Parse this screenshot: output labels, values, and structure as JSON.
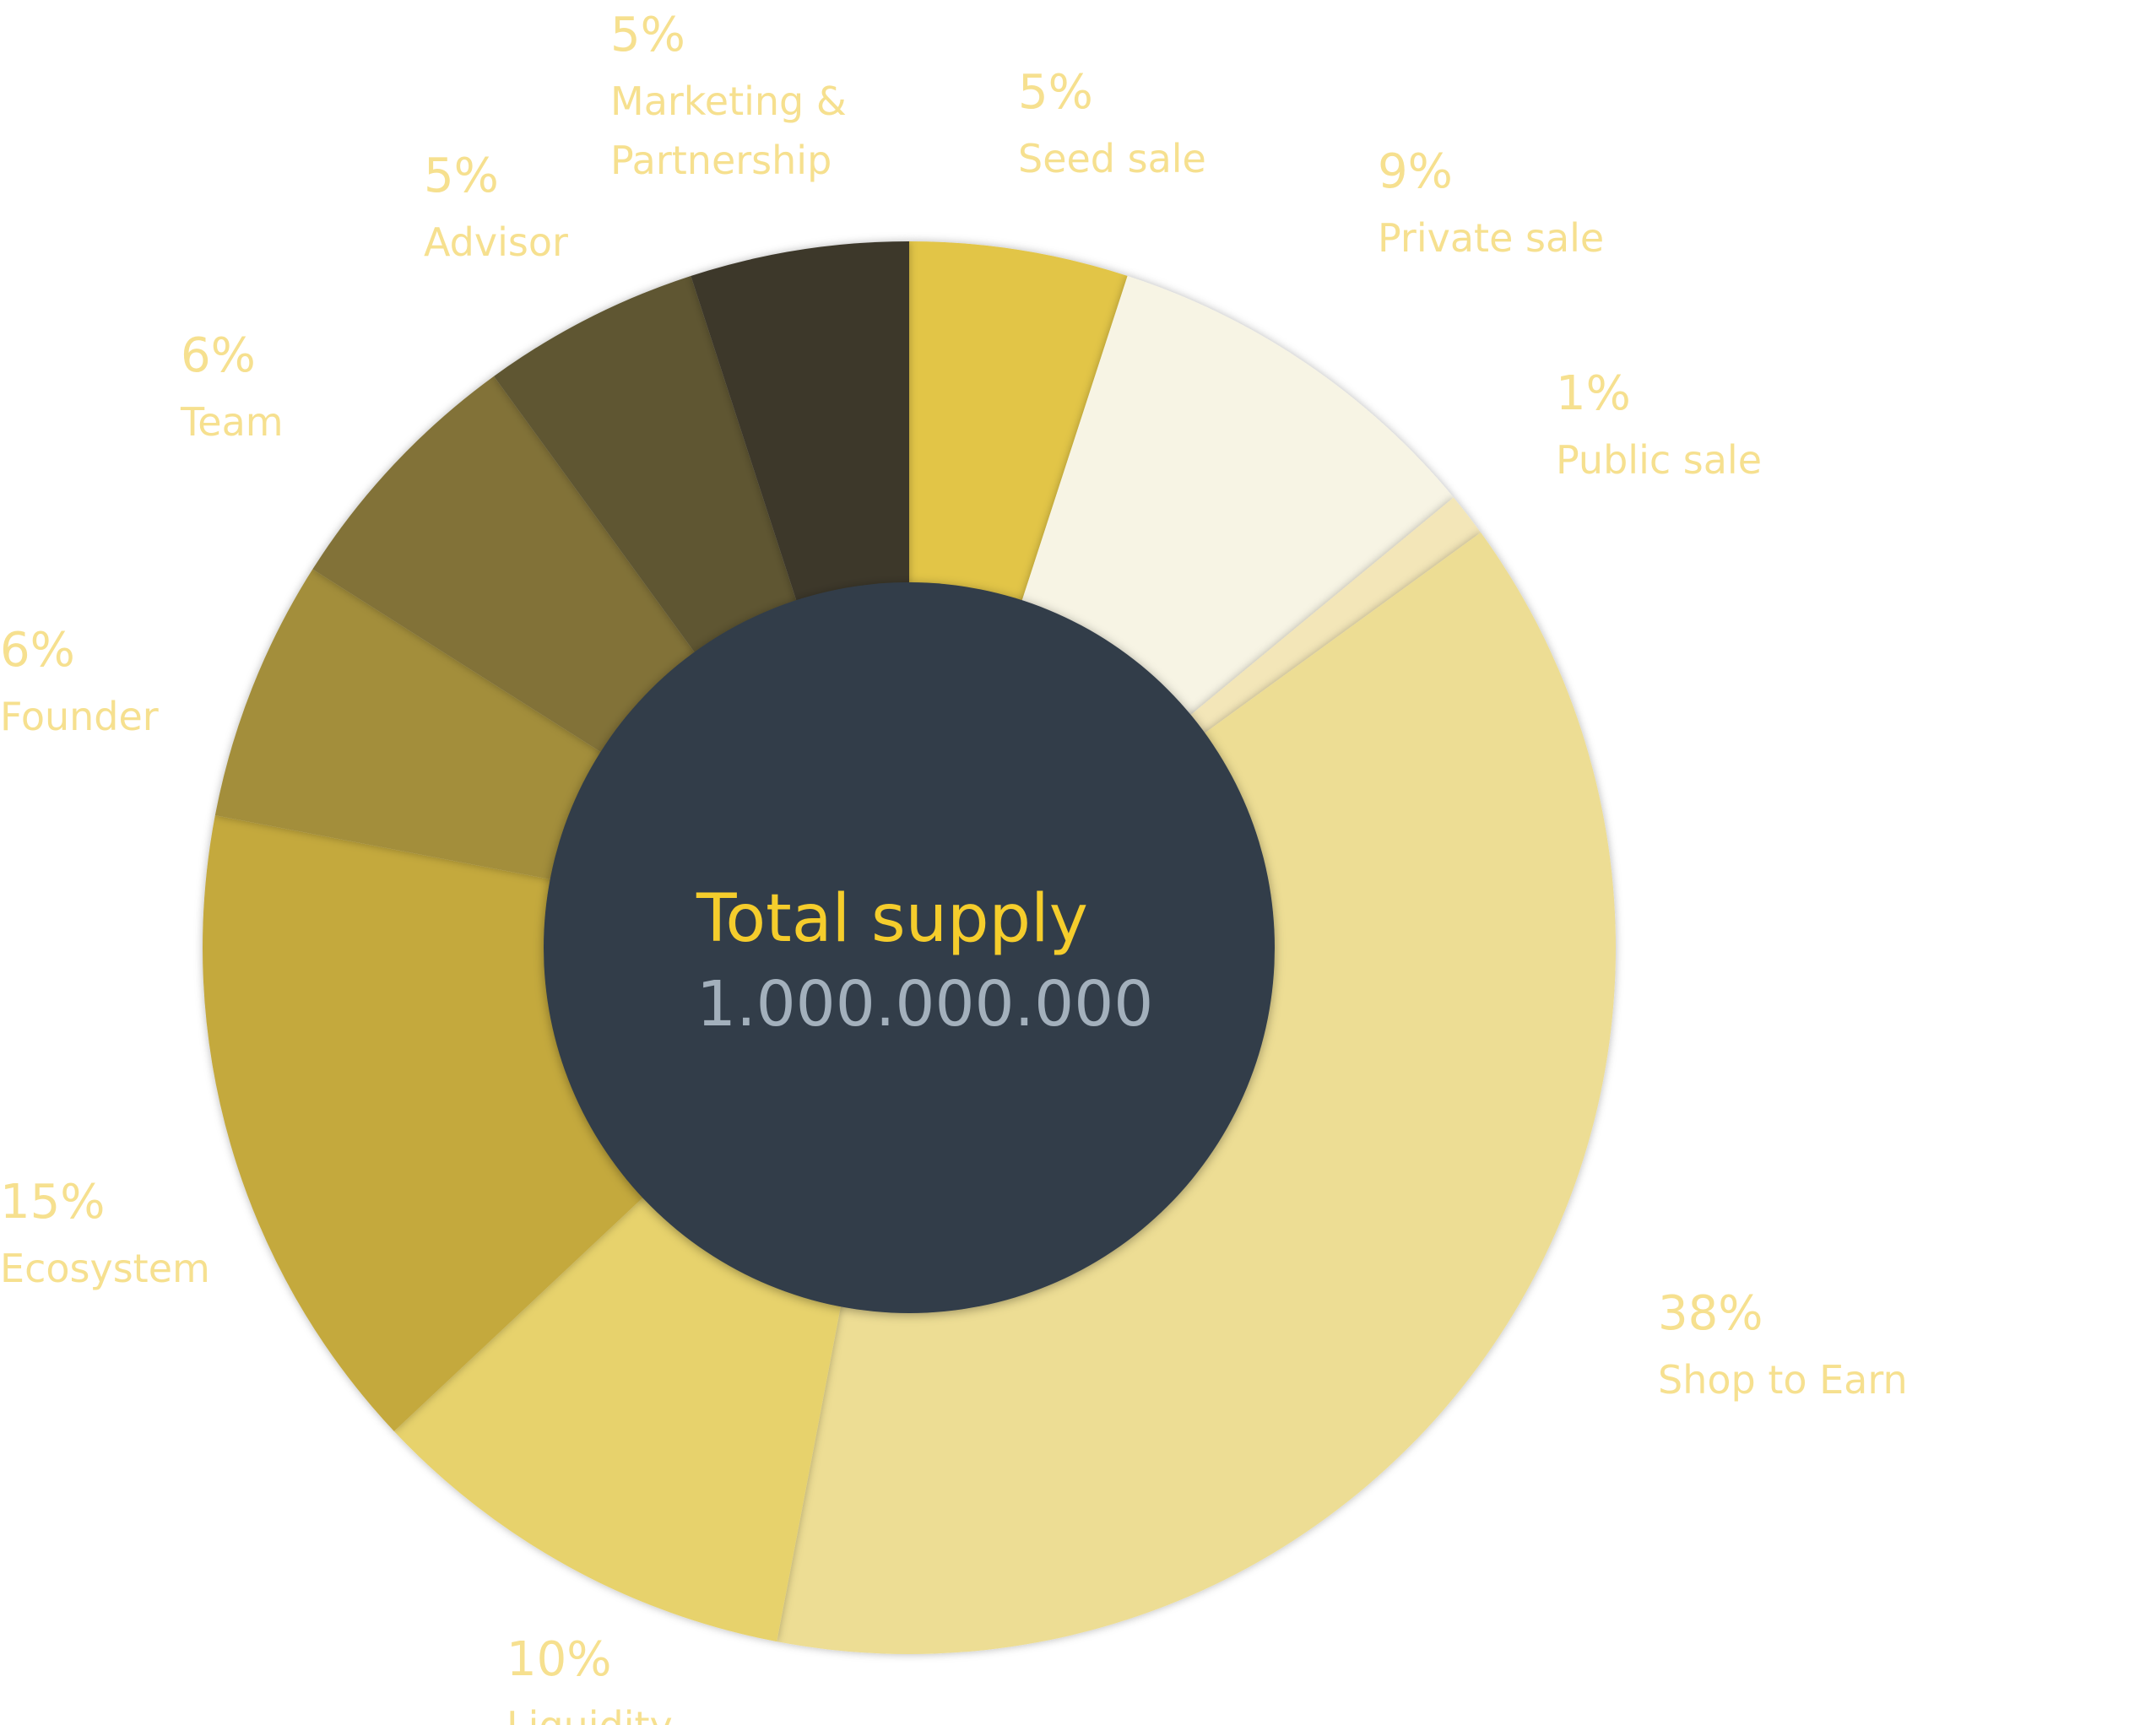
{
  "chart_data": {
    "type": "pie",
    "variant": "donut",
    "center_title": "Total supply",
    "center_value": "1.000.000.000",
    "slices": [
      {
        "name": "Seed sale",
        "value": 5,
        "label": "5%",
        "color": "#e2c546"
      },
      {
        "name": "Private sale",
        "value": 9,
        "label": "9%",
        "color": "#f7f4e4"
      },
      {
        "name": "Public sale",
        "value": 1,
        "label": "1%",
        "color": "#f3e6b8"
      },
      {
        "name": "Shop to Earn",
        "value": 38,
        "label": "38%",
        "color": "#eddd94"
      },
      {
        "name": "Liquidity",
        "value": 10,
        "label": "10%",
        "color": "#e7d26c"
      },
      {
        "name": "Ecosystem",
        "value": 15,
        "label": "15%",
        "color": "#c4a93e"
      },
      {
        "name": "Founder",
        "value": 6,
        "label": "6%",
        "color": "#a38e3a"
      },
      {
        "name": "Team",
        "value": 6,
        "label": "6%",
        "color": "#827237"
      },
      {
        "name": "Advisor",
        "value": 5,
        "label": "5%",
        "color": "#5e5632"
      },
      {
        "name": "Marketing &\nPartnership",
        "value": 5,
        "label": "5%",
        "color": "#3d372a"
      }
    ],
    "colors": {
      "label": "#f6e08f",
      "hole": "#313d4a",
      "center_title": "#f5cd2c",
      "center_value": "#a3b0bc"
    }
  }
}
